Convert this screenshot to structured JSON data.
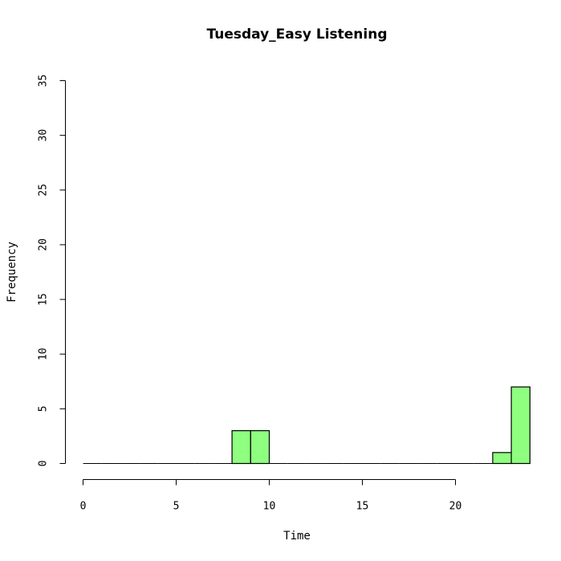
{
  "chart_data": {
    "type": "bar",
    "title": "Tuesday_Easy Listening",
    "xlabel": "Time",
    "ylabel": "Frequency",
    "xlim": [
      0,
      24
    ],
    "ylim": [
      0,
      35
    ],
    "x_ticks": [
      0,
      5,
      10,
      15,
      20
    ],
    "y_ticks": [
      0,
      5,
      10,
      15,
      20,
      25,
      30,
      35
    ],
    "bin_width": 1,
    "bins": [
      {
        "start": 0,
        "end": 1,
        "count": 0
      },
      {
        "start": 1,
        "end": 2,
        "count": 0
      },
      {
        "start": 2,
        "end": 3,
        "count": 0
      },
      {
        "start": 3,
        "end": 4,
        "count": 0
      },
      {
        "start": 4,
        "end": 5,
        "count": 0
      },
      {
        "start": 5,
        "end": 6,
        "count": 0
      },
      {
        "start": 6,
        "end": 7,
        "count": 0
      },
      {
        "start": 7,
        "end": 8,
        "count": 0
      },
      {
        "start": 8,
        "end": 9,
        "count": 3
      },
      {
        "start": 9,
        "end": 10,
        "count": 3
      },
      {
        "start": 10,
        "end": 11,
        "count": 0
      },
      {
        "start": 11,
        "end": 12,
        "count": 0
      },
      {
        "start": 12,
        "end": 13,
        "count": 0
      },
      {
        "start": 13,
        "end": 14,
        "count": 0
      },
      {
        "start": 14,
        "end": 15,
        "count": 0
      },
      {
        "start": 15,
        "end": 16,
        "count": 0
      },
      {
        "start": 16,
        "end": 17,
        "count": 0
      },
      {
        "start": 17,
        "end": 18,
        "count": 0
      },
      {
        "start": 18,
        "end": 19,
        "count": 0
      },
      {
        "start": 19,
        "end": 20,
        "count": 0
      },
      {
        "start": 20,
        "end": 21,
        "count": 0
      },
      {
        "start": 21,
        "end": 22,
        "count": 0
      },
      {
        "start": 22,
        "end": 23,
        "count": 1
      },
      {
        "start": 23,
        "end": 24,
        "count": 7
      }
    ],
    "bar_color": "#8fff80",
    "grid": false
  }
}
